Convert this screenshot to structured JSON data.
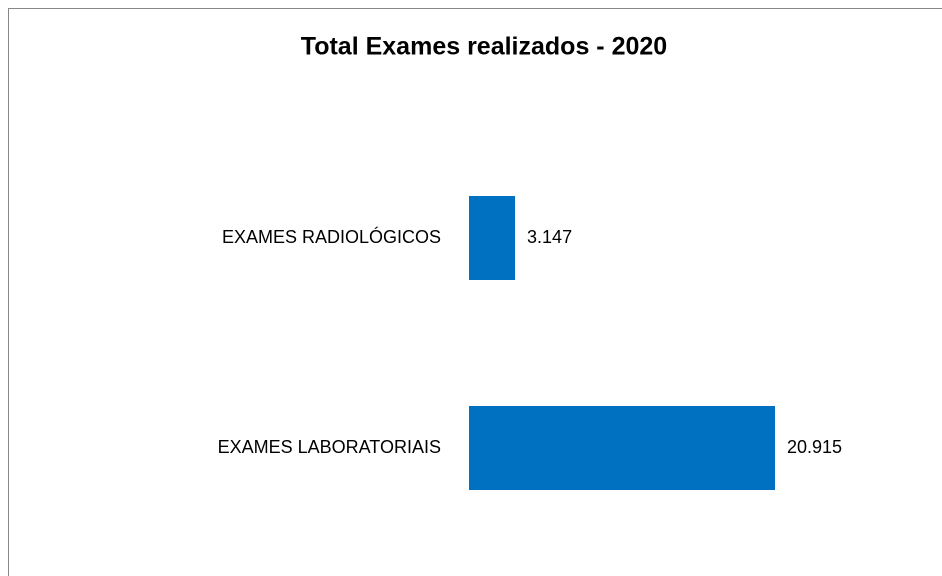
{
  "chart_data": {
    "type": "barh",
    "title": "Total Exames realizados - 2020",
    "categories": [
      "EXAMES RADIOLÓGICOS",
      "EXAMES LABORATORIAIS"
    ],
    "values": [
      3147,
      20915
    ],
    "value_labels": [
      "3.147",
      "20.915"
    ],
    "color": "#0070c0"
  }
}
